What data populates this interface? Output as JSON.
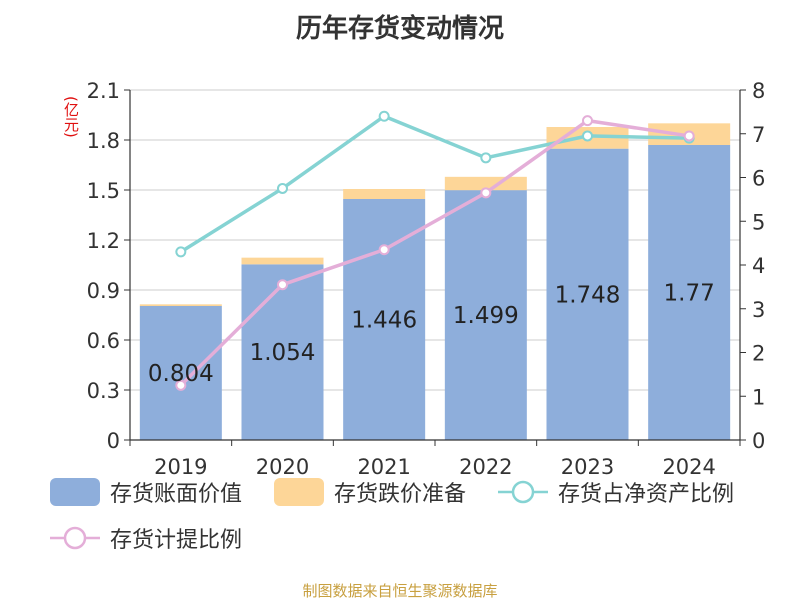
{
  "title": "历年存货变动情况",
  "unit_label": "(亿元)",
  "source": "制图数据来自恒生聚源数据库",
  "colors": {
    "inventory_book": "#8eaedb",
    "impairment": "#fdd698",
    "ratio_net_assets": "#85d3d3",
    "provision_ratio": "#e4aed8"
  },
  "chart_data": {
    "type": "bar",
    "stacked": true,
    "title": "历年存货变动情况",
    "categories": [
      "2019",
      "2020",
      "2021",
      "2022",
      "2023",
      "2024"
    ],
    "y_left": {
      "label": "(亿元)",
      "min": 0,
      "max": 2.1,
      "ticks": [
        "0",
        "0.3",
        "0.6",
        "0.9",
        "1.2",
        "1.5",
        "1.8",
        "2.1"
      ]
    },
    "y_right": {
      "min": 0,
      "max": 8,
      "ticks": [
        "0",
        "1",
        "2",
        "3",
        "4",
        "5",
        "6",
        "7",
        "8"
      ]
    },
    "grid": true,
    "legend_position": "bottom",
    "series": [
      {
        "name": "存货账面价值",
        "type": "bar",
        "axis": "left",
        "values": [
          0.804,
          1.054,
          1.446,
          1.499,
          1.748,
          1.77
        ],
        "labels": [
          "0.804",
          "1.054",
          "1.446",
          "1.499",
          "1.748",
          "1.77"
        ]
      },
      {
        "name": "存货跌价准备",
        "type": "bar",
        "axis": "left",
        "values": [
          0.01,
          0.04,
          0.06,
          0.08,
          0.13,
          0.13
        ]
      },
      {
        "name": "存货占净资产比例",
        "type": "line",
        "axis": "right",
        "values": [
          4.3,
          5.75,
          7.4,
          6.45,
          6.95,
          6.9
        ]
      },
      {
        "name": "存货计提比例",
        "type": "line",
        "axis": "right",
        "values": [
          1.25,
          3.55,
          4.35,
          5.65,
          7.3,
          6.95
        ]
      }
    ]
  }
}
